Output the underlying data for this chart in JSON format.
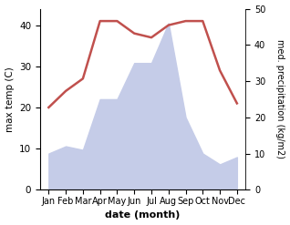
{
  "months": [
    "Jan",
    "Feb",
    "Mar",
    "Apr",
    "May",
    "Jun",
    "Jul",
    "Aug",
    "Sep",
    "Oct",
    "Nov",
    "Dec"
  ],
  "temperature": [
    20,
    24,
    27,
    41,
    41,
    38,
    37,
    40,
    41,
    41,
    29,
    21
  ],
  "precipitation": [
    10,
    12,
    11,
    25,
    25,
    35,
    35,
    46,
    20,
    10,
    7,
    9
  ],
  "temp_color": "#c0504d",
  "precip_fill_color": "#c5cce8",
  "ylabel_left": "max temp (C)",
  "ylabel_right": "med. precipitation (kg/m2)",
  "xlabel": "date (month)",
  "ylim_left": [
    0,
    44
  ],
  "ylim_right": [
    0,
    50
  ],
  "yticks_left": [
    0,
    10,
    20,
    30,
    40
  ],
  "yticks_right": [
    0,
    10,
    20,
    30,
    40,
    50
  ],
  "background_color": "#ffffff"
}
